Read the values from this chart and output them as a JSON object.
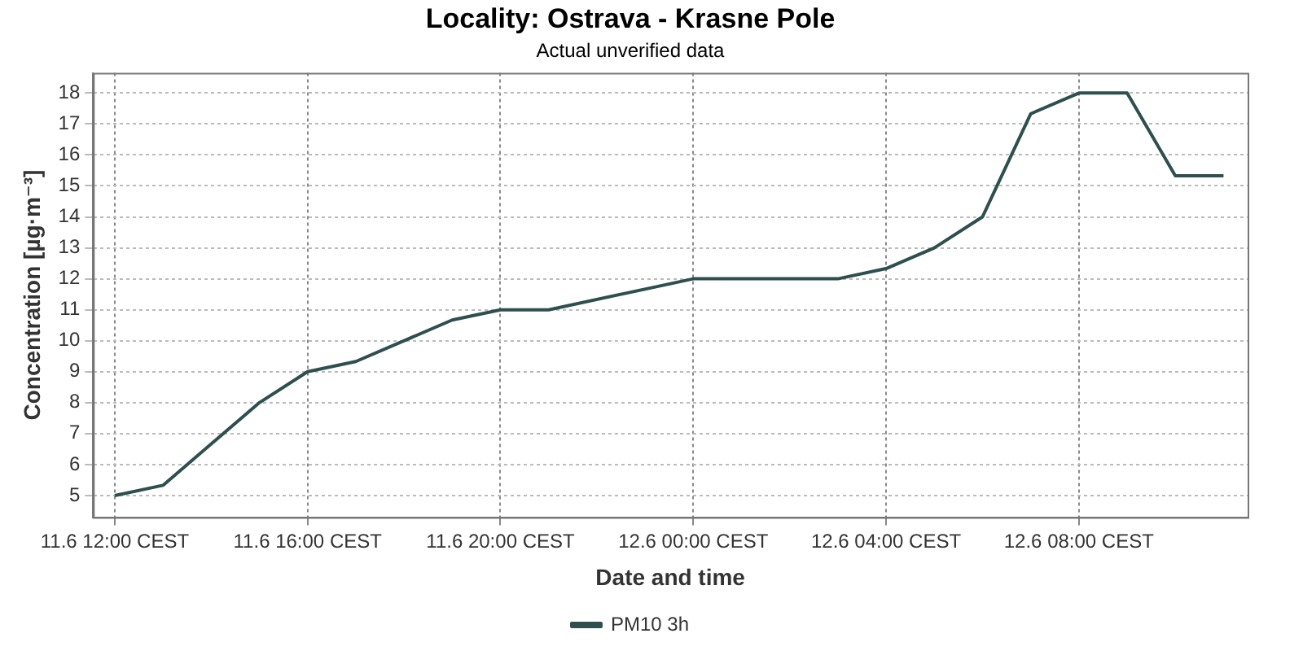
{
  "chart_data": {
    "type": "line",
    "title": "Locality: Ostrava - Krasne Pole",
    "subtitle": "Actual unverified data",
    "xlabel": "Date and time",
    "ylabel": "Concentration [µg·m⁻³]",
    "x": [
      "--06-11T12:00",
      "--06-11T13:00",
      "--06-11T15:00",
      "--06-11T16:00",
      "--06-11T17:00",
      "--06-11T19:00",
      "--06-11T20:00",
      "--06-11T21:00",
      "--06-12T00:00",
      "--06-12T03:00",
      "--06-12T04:00",
      "--06-12T05:00",
      "--06-12T06:00",
      "--06-12T07:00",
      "--06-12T08:00",
      "--06-12T09:00",
      "--06-12T10:00",
      "--06-12T11:00"
    ],
    "series": [
      {
        "name": "PM10 3h",
        "color": "#2f4f4f",
        "values": [
          5,
          5.33,
          8,
          9,
          9.33,
          10.67,
          11,
          11,
          12,
          12,
          12.33,
          13,
          14,
          17.33,
          18,
          18,
          15.33,
          15.33
        ]
      }
    ],
    "xlim": [
      "--06-11T11:33",
      "--06-12T11:30"
    ],
    "xticks": [
      {
        "value": "--06-11T12:00",
        "label": "11.6 12:00 CEST"
      },
      {
        "value": "--06-11T16:00",
        "label": "11.6 16:00 CEST"
      },
      {
        "value": "--06-11T20:00",
        "label": "11.6 20:00 CEST"
      },
      {
        "value": "--06-12T00:00",
        "label": "12.6 00:00 CEST"
      },
      {
        "value": "--06-12T04:00",
        "label": "12.6 04:00 CEST"
      },
      {
        "value": "--06-12T08:00",
        "label": "12.6 08:00 CEST"
      }
    ],
    "ylim": [
      4.3,
      18.65
    ],
    "yticks": [
      5,
      6,
      7,
      8,
      9,
      10,
      11,
      12,
      13,
      14,
      15,
      16,
      17,
      18
    ],
    "grid": true,
    "legend": "bottom",
    "marker": "none",
    "line_style": "solid"
  }
}
